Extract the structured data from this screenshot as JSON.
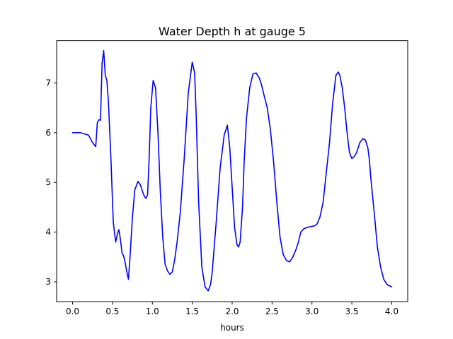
{
  "chart_data": {
    "type": "line",
    "title": "Water Depth h at gauge 5",
    "xlabel": "hours",
    "ylabel": "",
    "xlim": [
      -0.2,
      4.2
    ],
    "ylim": [
      2.6,
      7.85
    ],
    "xticks": [
      "0.0",
      "0.5",
      "1.0",
      "1.5",
      "2.0",
      "2.5",
      "3.0",
      "3.5",
      "4.0"
    ],
    "yticks": [
      "3",
      "4",
      "5",
      "6",
      "7"
    ],
    "grid": false,
    "series": [
      {
        "name": "",
        "color": "#0000ff",
        "x": [
          0.0,
          0.1,
          0.2,
          0.25,
          0.29,
          0.31,
          0.33,
          0.35,
          0.37,
          0.39,
          0.41,
          0.43,
          0.45,
          0.48,
          0.51,
          0.54,
          0.56,
          0.58,
          0.6,
          0.62,
          0.64,
          0.66,
          0.68,
          0.7,
          0.72,
          0.75,
          0.78,
          0.82,
          0.85,
          0.88,
          0.9,
          0.92,
          0.94,
          0.96,
          0.98,
          1.01,
          1.04,
          1.07,
          1.1,
          1.13,
          1.16,
          1.19,
          1.22,
          1.25,
          1.28,
          1.31,
          1.35,
          1.4,
          1.45,
          1.5,
          1.53,
          1.55,
          1.58,
          1.62,
          1.66,
          1.7,
          1.73,
          1.75,
          1.8,
          1.85,
          1.9,
          1.94,
          1.97,
          2.0,
          2.03,
          2.06,
          2.08,
          2.1,
          2.13,
          2.15,
          2.18,
          2.22,
          2.26,
          2.3,
          2.34,
          2.37,
          2.4,
          2.44,
          2.48,
          2.52,
          2.56,
          2.6,
          2.64,
          2.68,
          2.72,
          2.76,
          2.8,
          2.83,
          2.86,
          2.9,
          2.95,
          2.98,
          3.02,
          3.06,
          3.1,
          3.14,
          3.18,
          3.22,
          3.26,
          3.3,
          3.33,
          3.35,
          3.38,
          3.41,
          3.44,
          3.47,
          3.5,
          3.53,
          3.56,
          3.6,
          3.64,
          3.67,
          3.7,
          3.72,
          3.74,
          3.78,
          3.82,
          3.86,
          3.9,
          3.94,
          3.97,
          4.0
        ],
        "y": [
          6.0,
          6.0,
          5.95,
          5.8,
          5.72,
          6.2,
          6.26,
          6.25,
          7.4,
          7.65,
          7.15,
          7.05,
          6.6,
          5.5,
          4.2,
          3.8,
          3.95,
          4.05,
          3.85,
          3.58,
          3.52,
          3.38,
          3.2,
          3.05,
          3.5,
          4.3,
          4.85,
          5.02,
          4.95,
          4.8,
          4.72,
          4.68,
          4.75,
          5.5,
          6.5,
          7.05,
          6.9,
          6.0,
          4.8,
          3.9,
          3.35,
          3.22,
          3.15,
          3.2,
          3.45,
          3.8,
          4.4,
          5.5,
          6.8,
          7.42,
          7.2,
          6.3,
          4.6,
          3.3,
          2.9,
          2.82,
          2.95,
          3.2,
          4.2,
          5.3,
          5.95,
          6.15,
          5.7,
          4.9,
          4.1,
          3.75,
          3.7,
          3.8,
          4.5,
          5.4,
          6.3,
          6.9,
          7.18,
          7.2,
          7.1,
          6.95,
          6.75,
          6.5,
          6.05,
          5.4,
          4.6,
          3.9,
          3.55,
          3.43,
          3.4,
          3.5,
          3.65,
          3.8,
          4.0,
          4.07,
          4.1,
          4.11,
          4.12,
          4.15,
          4.3,
          4.6,
          5.2,
          5.8,
          6.6,
          7.15,
          7.22,
          7.15,
          6.9,
          6.5,
          6.0,
          5.6,
          5.48,
          5.52,
          5.6,
          5.8,
          5.88,
          5.85,
          5.7,
          5.45,
          5.05,
          4.4,
          3.7,
          3.3,
          3.05,
          2.95,
          2.92,
          2.9
        ]
      }
    ]
  }
}
